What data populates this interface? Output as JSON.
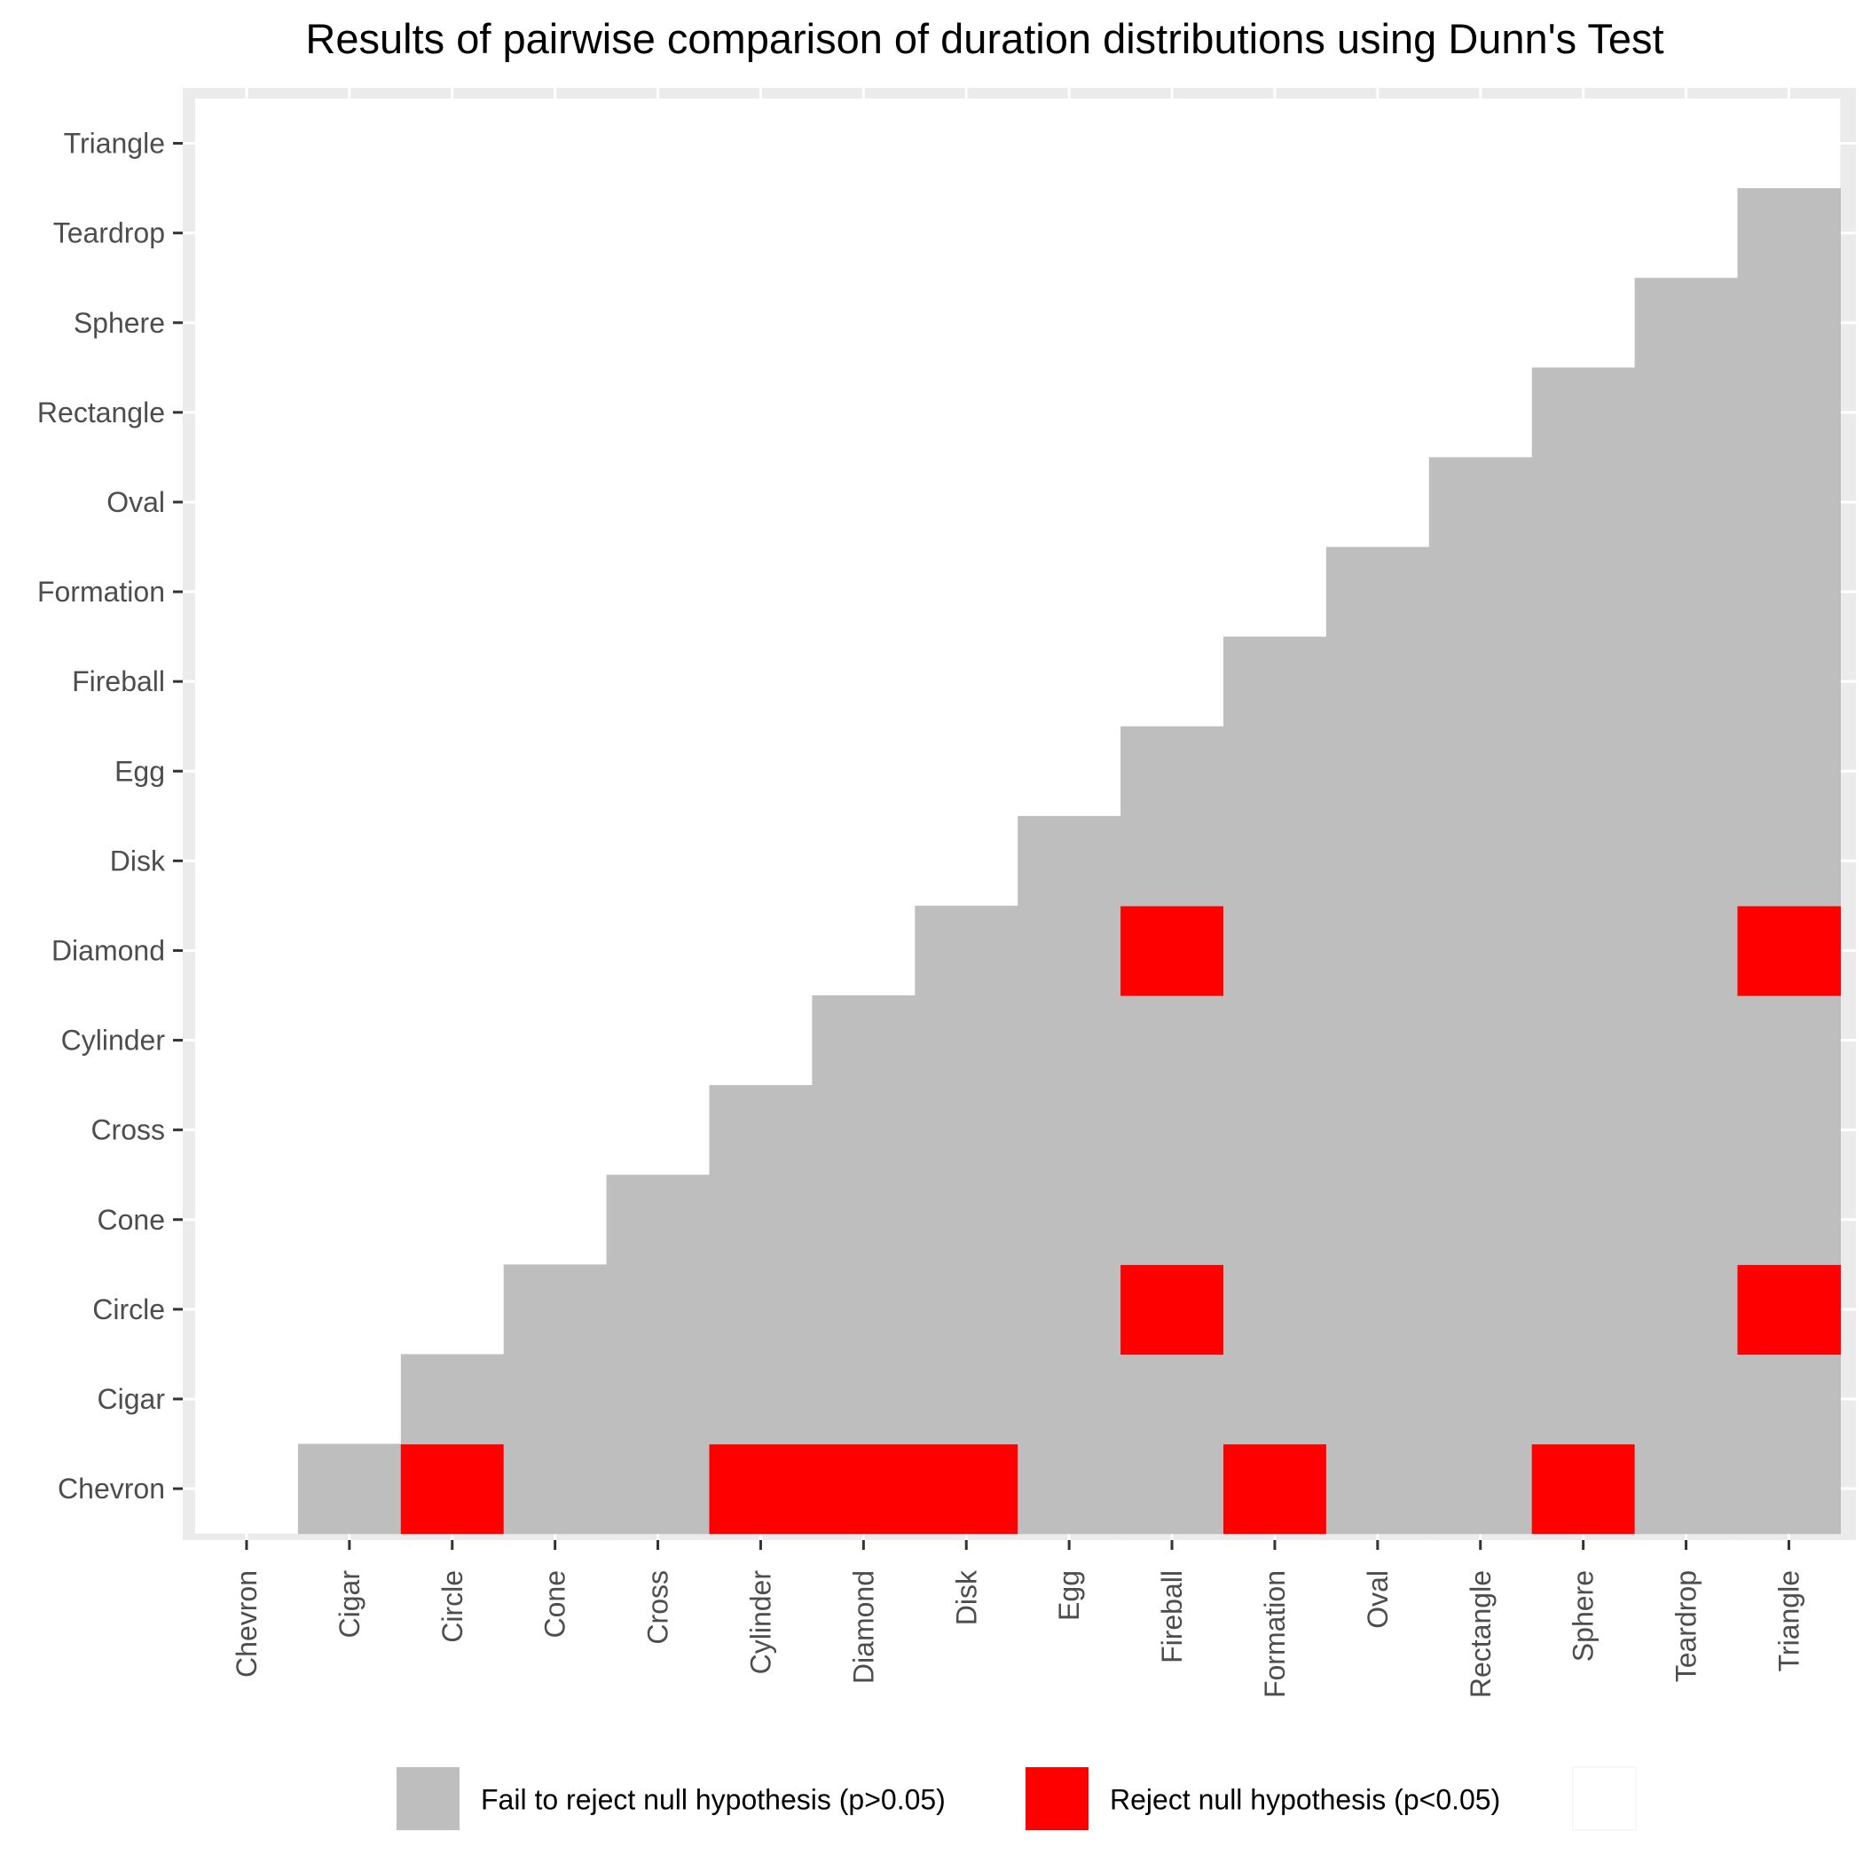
{
  "chart_data": {
    "type": "heatmap",
    "title": "Results of pairwise comparison of duration distributions using Dunn's Test",
    "xlabel": "",
    "ylabel": "",
    "categories": [
      "Chevron",
      "Cigar",
      "Circle",
      "Cone",
      "Cross",
      "Cylinder",
      "Diamond",
      "Disk",
      "Egg",
      "Fireball",
      "Formation",
      "Oval",
      "Rectangle",
      "Sphere",
      "Teardrop",
      "Triangle"
    ],
    "value_scale": {
      "fail": {
        "label": "Fail to reject null hypothesis (p>0.05)",
        "color": "#bebebe"
      },
      "reject": {
        "label": "Reject null hypothesis (p<0.05)",
        "color": "#ff0000"
      },
      "none": {
        "label": "",
        "color": "#ffffff"
      }
    },
    "matrix_note_rows_are_y_categories_x_columns_are_x_categories": "",
    "cells": [
      {
        "y": "Chevron",
        "values": [
          "",
          "fail",
          "reject",
          "fail",
          "fail",
          "reject",
          "reject",
          "reject",
          "fail",
          "fail",
          "reject",
          "fail",
          "fail",
          "reject",
          "fail",
          "fail"
        ]
      },
      {
        "y": "Cigar",
        "values": [
          "",
          "",
          "fail",
          "fail",
          "fail",
          "fail",
          "fail",
          "fail",
          "fail",
          "fail",
          "fail",
          "fail",
          "fail",
          "fail",
          "fail",
          "fail"
        ]
      },
      {
        "y": "Circle",
        "values": [
          "",
          "",
          "",
          "fail",
          "fail",
          "fail",
          "fail",
          "fail",
          "fail",
          "reject",
          "fail",
          "fail",
          "fail",
          "fail",
          "fail",
          "reject"
        ]
      },
      {
        "y": "Cone",
        "values": [
          "",
          "",
          "",
          "",
          "fail",
          "fail",
          "fail",
          "fail",
          "fail",
          "fail",
          "fail",
          "fail",
          "fail",
          "fail",
          "fail",
          "fail"
        ]
      },
      {
        "y": "Cross",
        "values": [
          "",
          "",
          "",
          "",
          "",
          "fail",
          "fail",
          "fail",
          "fail",
          "fail",
          "fail",
          "fail",
          "fail",
          "fail",
          "fail",
          "fail"
        ]
      },
      {
        "y": "Cylinder",
        "values": [
          "",
          "",
          "",
          "",
          "",
          "",
          "fail",
          "fail",
          "fail",
          "fail",
          "fail",
          "fail",
          "fail",
          "fail",
          "fail",
          "fail"
        ]
      },
      {
        "y": "Diamond",
        "values": [
          "",
          "",
          "",
          "",
          "",
          "",
          "",
          "fail",
          "fail",
          "reject",
          "fail",
          "fail",
          "fail",
          "fail",
          "fail",
          "reject"
        ]
      },
      {
        "y": "Disk",
        "values": [
          "",
          "",
          "",
          "",
          "",
          "",
          "",
          "",
          "fail",
          "fail",
          "fail",
          "fail",
          "fail",
          "fail",
          "fail",
          "fail"
        ]
      },
      {
        "y": "Egg",
        "values": [
          "",
          "",
          "",
          "",
          "",
          "",
          "",
          "",
          "",
          "fail",
          "fail",
          "fail",
          "fail",
          "fail",
          "fail",
          "fail"
        ]
      },
      {
        "y": "Fireball",
        "values": [
          "",
          "",
          "",
          "",
          "",
          "",
          "",
          "",
          "",
          "",
          "fail",
          "fail",
          "fail",
          "fail",
          "fail",
          "fail"
        ]
      },
      {
        "y": "Formation",
        "values": [
          "",
          "",
          "",
          "",
          "",
          "",
          "",
          "",
          "",
          "",
          "",
          "fail",
          "fail",
          "fail",
          "fail",
          "fail"
        ]
      },
      {
        "y": "Oval",
        "values": [
          "",
          "",
          "",
          "",
          "",
          "",
          "",
          "",
          "",
          "",
          "",
          "",
          "fail",
          "fail",
          "fail",
          "fail"
        ]
      },
      {
        "y": "Rectangle",
        "values": [
          "",
          "",
          "",
          "",
          "",
          "",
          "",
          "",
          "",
          "",
          "",
          "",
          "",
          "fail",
          "fail",
          "fail"
        ]
      },
      {
        "y": "Sphere",
        "values": [
          "",
          "",
          "",
          "",
          "",
          "",
          "",
          "",
          "",
          "",
          "",
          "",
          "",
          "",
          "fail",
          "fail"
        ]
      },
      {
        "y": "Teardrop",
        "values": [
          "",
          "",
          "",
          "",
          "",
          "",
          "",
          "",
          "",
          "",
          "",
          "",
          "",
          "",
          "",
          "fail"
        ]
      },
      {
        "y": "Triangle",
        "values": [
          "",
          "",
          "",
          "",
          "",
          "",
          "",
          "",
          "",
          "",
          "",
          "",
          "",
          "",
          "",
          ""
        ]
      }
    ],
    "legend": {
      "placement": "bottom",
      "entries": [
        {
          "key": "fail",
          "label": "Fail to reject null hypothesis (p>0.05)"
        },
        {
          "key": "reject",
          "label": "Reject null hypothesis (p<0.05)"
        },
        {
          "key": "none",
          "label": ""
        }
      ]
    },
    "panel_background": "#ebebeb",
    "grid": true
  }
}
